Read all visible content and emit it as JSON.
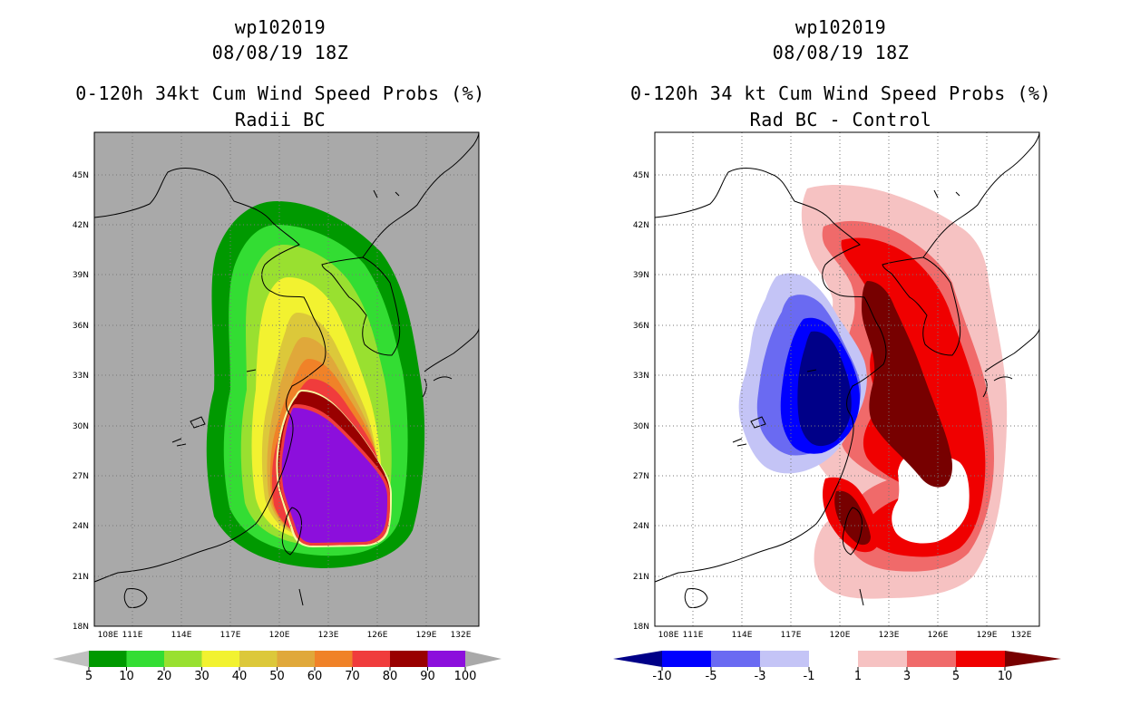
{
  "panels": [
    {
      "id": "left",
      "title_line1": "wp102019",
      "title_line2": "08/08/19 18Z",
      "title_line3": "0-120h 34kt Cum Wind Speed Probs (%)",
      "title_line4": "Radii BC",
      "background": "#a9a9a9",
      "lon_ticks": [
        "108E",
        "111E",
        "114E",
        "117E",
        "120E",
        "123E",
        "126E",
        "129E",
        "132E"
      ],
      "lat_ticks": [
        "18N",
        "21N",
        "24N",
        "27N",
        "30N",
        "33N",
        "36N",
        "39N",
        "42N",
        "45N"
      ],
      "colorbar": {
        "left_arrow_color": "#c0c0c0",
        "right_arrow_color": "#a9a9a9",
        "bins": [
          {
            "color": "#009900"
          },
          {
            "color": "#33dd33"
          },
          {
            "color": "#99e030"
          },
          {
            "color": "#f2f230"
          },
          {
            "color": "#dcc83a"
          },
          {
            "color": "#e0a83a"
          },
          {
            "color": "#f08228"
          },
          {
            "color": "#f03c3c"
          },
          {
            "color": "#990000"
          },
          {
            "color": "#8c0fdc"
          }
        ],
        "labels": [
          "5",
          "10",
          "20",
          "30",
          "40",
          "50",
          "60",
          "70",
          "80",
          "90",
          "100"
        ]
      }
    },
    {
      "id": "right",
      "title_line1": "wp102019",
      "title_line2": "08/08/19 18Z",
      "title_line3": "0-120h 34 kt Cum Wind Speed Probs (%)",
      "title_line4": "Rad BC - Control",
      "background": "#ffffff",
      "lon_ticks": [
        "108E",
        "111E",
        "114E",
        "117E",
        "120E",
        "123E",
        "126E",
        "129E",
        "132E"
      ],
      "lat_ticks": [
        "18N",
        "21N",
        "24N",
        "27N",
        "30N",
        "33N",
        "36N",
        "39N",
        "42N",
        "45N"
      ],
      "colorbar": {
        "left_arrow_color": "#000088",
        "right_arrow_color": "#770000",
        "bins": [
          {
            "color": "#0000ff"
          },
          {
            "color": "#6a6af2"
          },
          {
            "color": "#c4c4f6"
          },
          {
            "color": "#ffffff"
          },
          {
            "color": "#f6c2c2"
          },
          {
            "color": "#f06a6a"
          },
          {
            "color": "#f00000"
          }
        ],
        "labels": [
          "-10",
          "-5",
          "-3",
          "-1",
          "1",
          "3",
          "5",
          "10"
        ]
      }
    }
  ]
}
